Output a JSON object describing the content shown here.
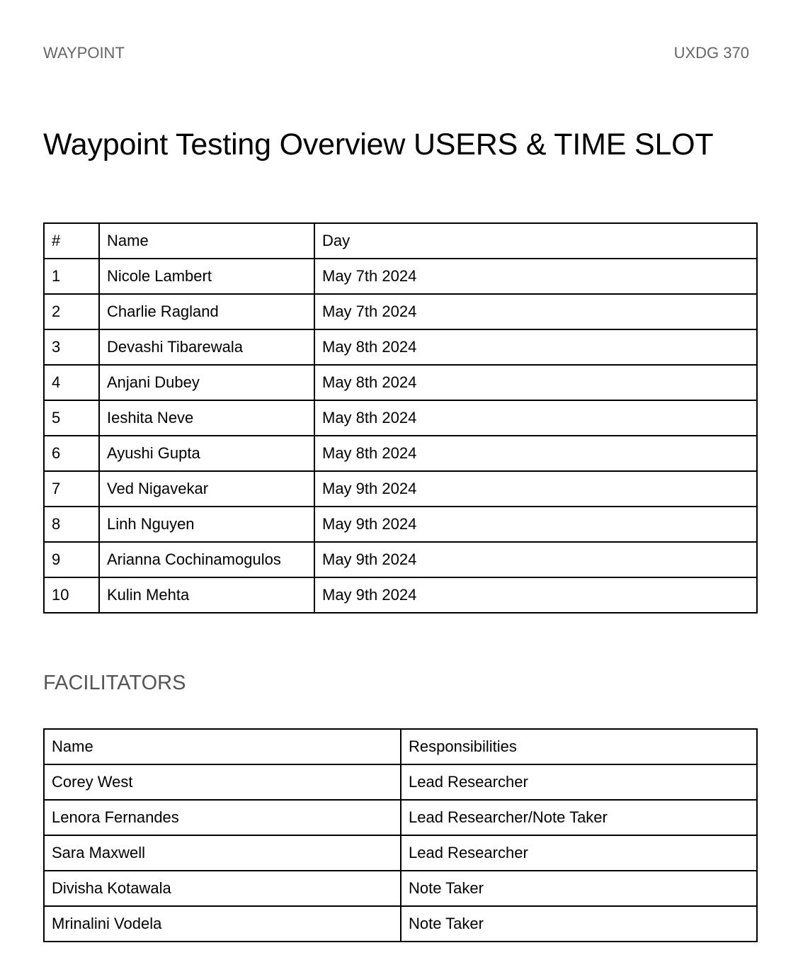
{
  "header": {
    "left": "WAYPOINT",
    "right": "UXDG 370"
  },
  "title": "Waypoint Testing Overview USERS & TIME SLOT",
  "users_table": {
    "columns": [
      "#",
      "Name",
      "Day"
    ],
    "rows": [
      [
        "1",
        "Nicole Lambert",
        "May 7th 2024"
      ],
      [
        "2",
        "Charlie Ragland",
        "May 7th 2024"
      ],
      [
        "3",
        "Devashi Tibarewala",
        "May 8th 2024"
      ],
      [
        "4",
        "Anjani Dubey",
        "May 8th 2024"
      ],
      [
        "5",
        "Ieshita Neve",
        "May 8th 2024"
      ],
      [
        "6",
        "Ayushi Gupta",
        "May 8th 2024"
      ],
      [
        "7",
        "Ved Nigavekar",
        "May 9th 2024"
      ],
      [
        "8",
        "Linh Nguyen",
        "May 9th 2024"
      ],
      [
        "9",
        "Arianna Cochinamogulos",
        "May 9th 2024"
      ],
      [
        "10",
        "Kulin Mehta",
        "May 9th 2024"
      ]
    ]
  },
  "facilitators_heading": "FACILITATORS",
  "facilitators_table": {
    "columns": [
      "Name",
      "Responsibilities"
    ],
    "rows": [
      [
        "Corey West",
        "Lead Researcher"
      ],
      [
        "Lenora Fernandes",
        "Lead Researcher/Note Taker"
      ],
      [
        "Sara Maxwell",
        "Lead Researcher"
      ],
      [
        "Divisha Kotawala",
        "Note Taker"
      ],
      [
        "Mrinalini Vodela",
        "Note Taker"
      ]
    ]
  }
}
